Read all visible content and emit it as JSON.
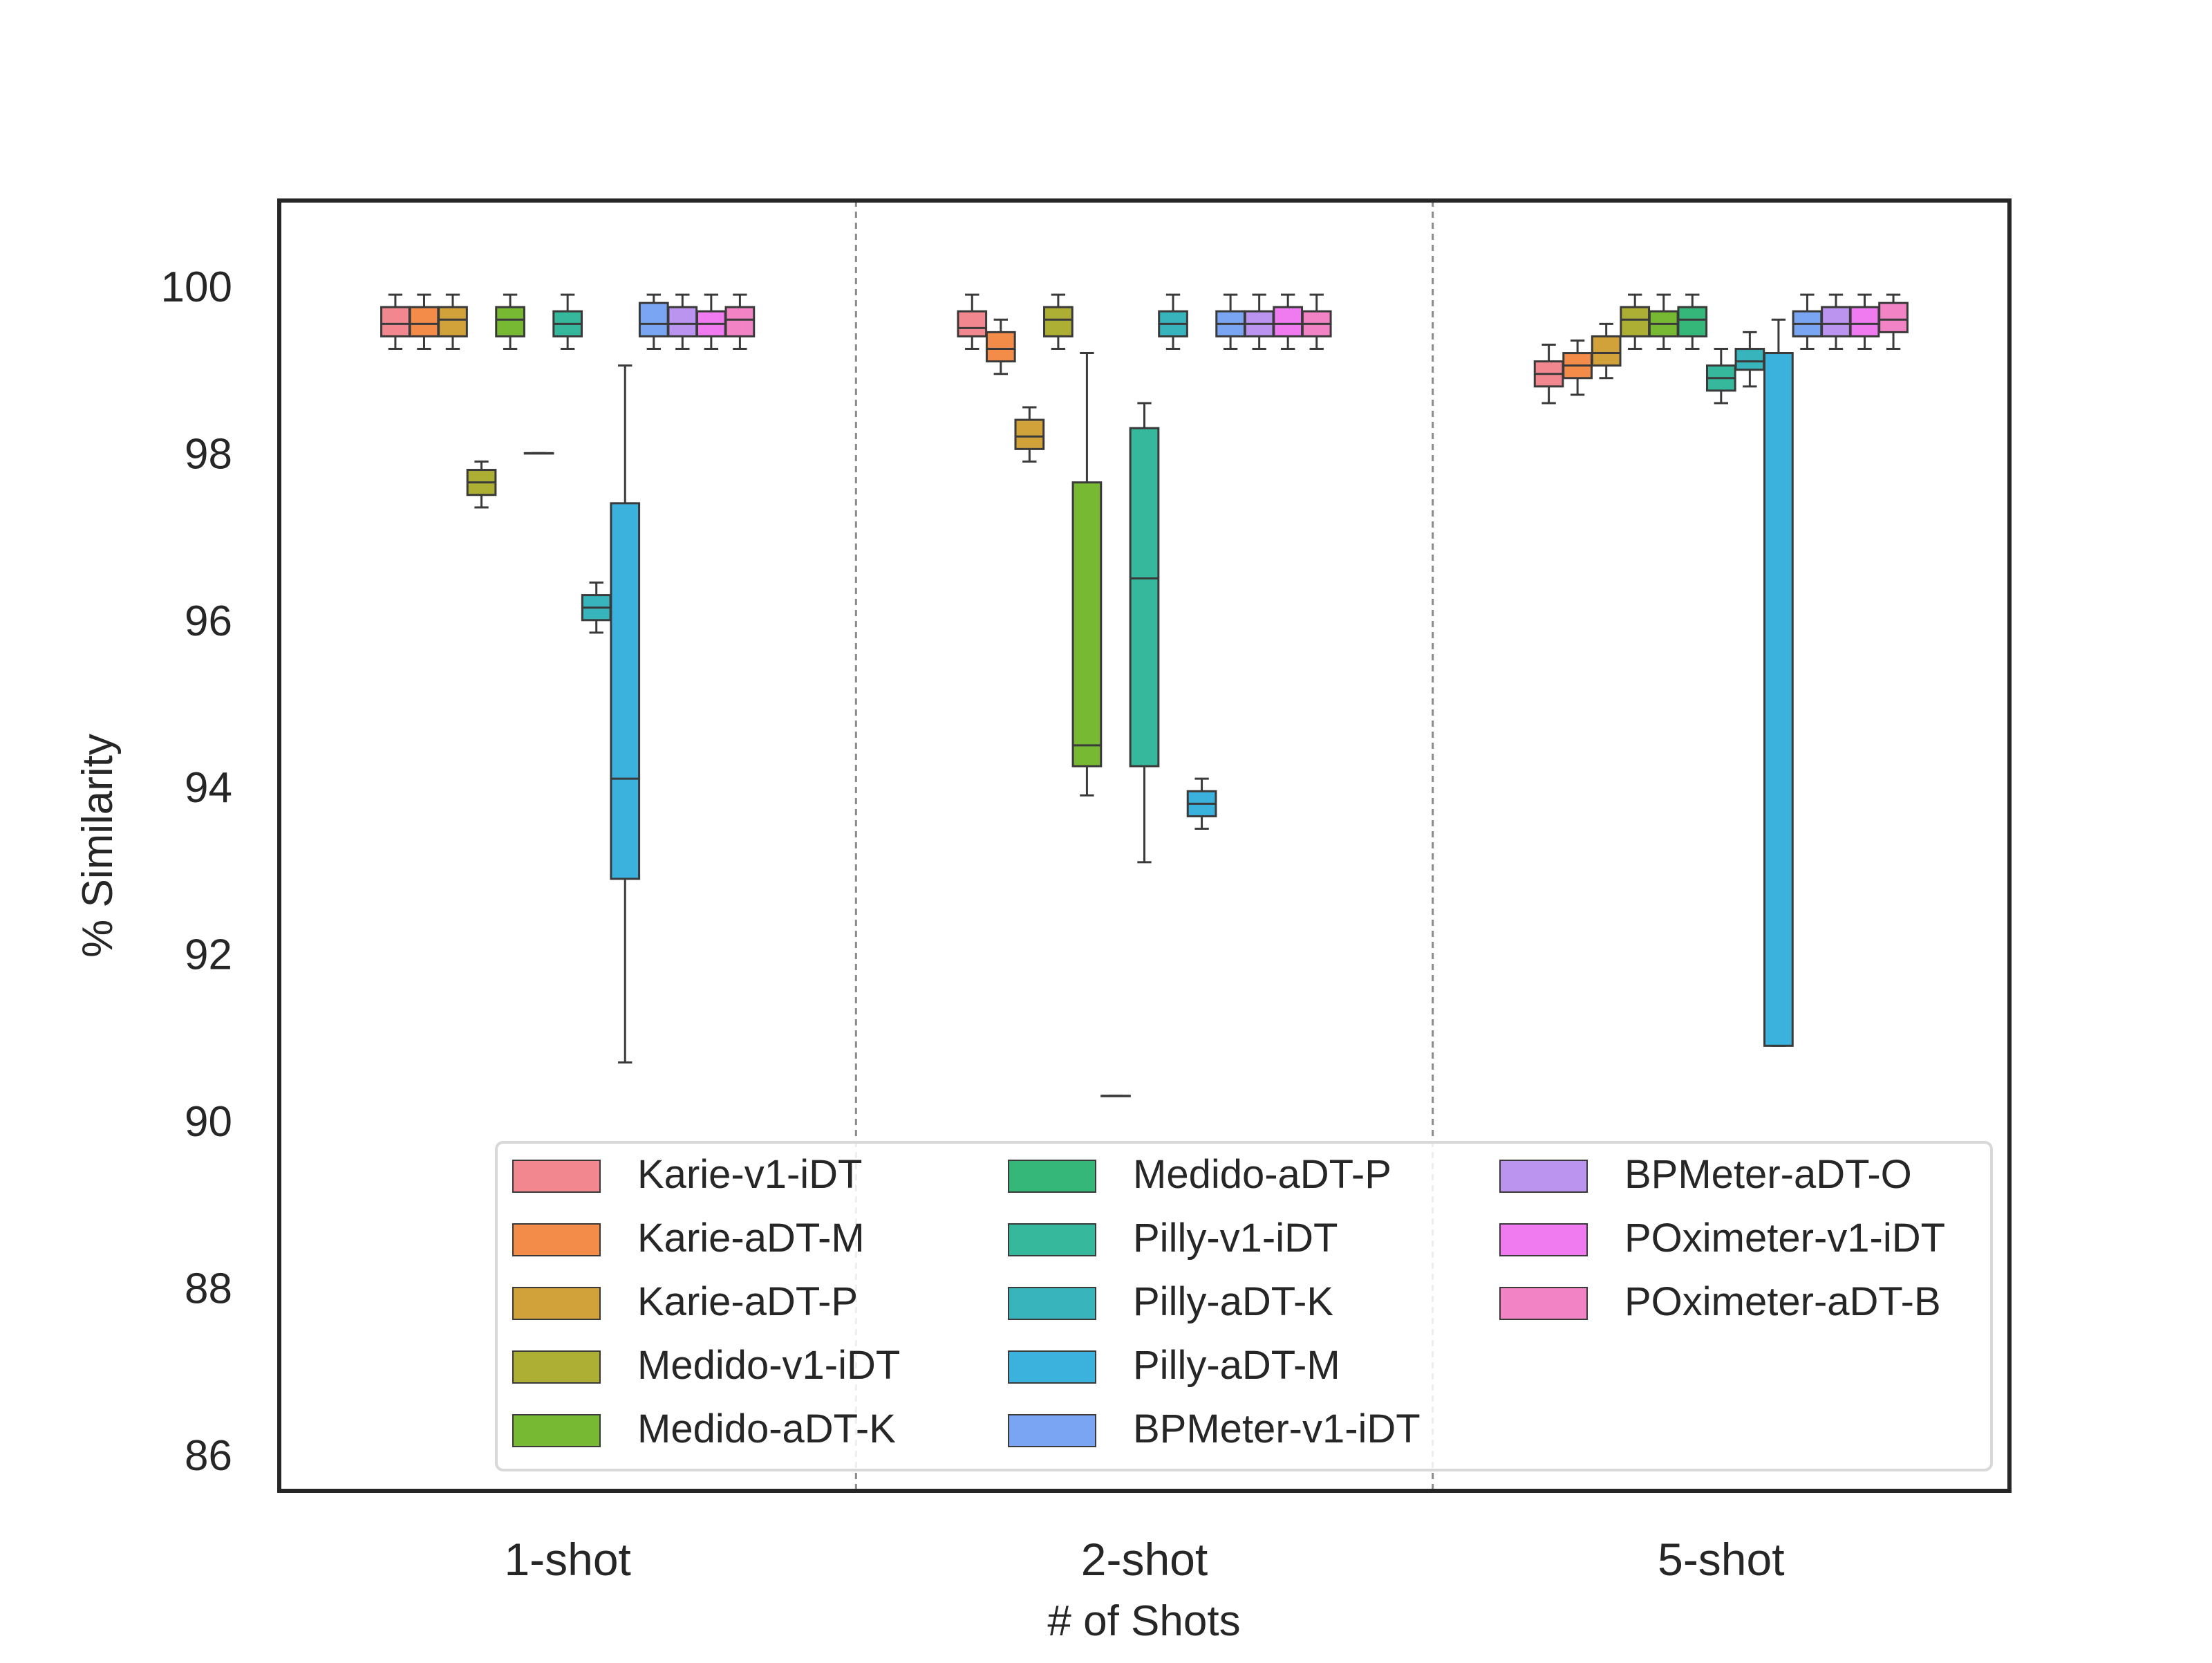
{
  "chart_data": {
    "type": "box",
    "title": "",
    "xlabel": "# of Shots",
    "ylabel": "% Similarity",
    "ylim": [
      85.5,
      101
    ],
    "yticks": [
      86,
      88,
      90,
      92,
      94,
      96,
      98,
      100
    ],
    "categories": [
      "1-shot",
      "2-shot",
      "5-shot"
    ],
    "grid": false,
    "legend_position": "bottom-right",
    "legend_columns": 3,
    "series": [
      {
        "name": "Karie-v1-iDT",
        "color": "#f2878f",
        "boxes": [
          {
            "whislo": 99.25,
            "q1": 99.4,
            "med": 99.55,
            "q3": 99.75,
            "whishi": 99.9
          },
          {
            "whislo": 99.25,
            "q1": 99.4,
            "med": 99.5,
            "q3": 99.7,
            "whishi": 99.9
          },
          {
            "whislo": 98.6,
            "q1": 98.8,
            "med": 98.95,
            "q3": 99.1,
            "whishi": 99.3
          }
        ]
      },
      {
        "name": "Karie-aDT-M",
        "color": "#f38b49",
        "boxes": [
          {
            "whislo": 99.25,
            "q1": 99.4,
            "med": 99.55,
            "q3": 99.75,
            "whishi": 99.9
          },
          {
            "whislo": 98.95,
            "q1": 99.1,
            "med": 99.25,
            "q3": 99.45,
            "whishi": 99.6
          },
          {
            "whislo": 98.7,
            "q1": 98.9,
            "med": 99.05,
            "q3": 99.2,
            "whishi": 99.35
          }
        ]
      },
      {
        "name": "Karie-aDT-P",
        "color": "#d1a13a",
        "boxes": [
          {
            "whislo": 99.25,
            "q1": 99.4,
            "med": 99.6,
            "q3": 99.75,
            "whishi": 99.9
          },
          {
            "whislo": 97.9,
            "q1": 98.05,
            "med": 98.2,
            "q3": 98.4,
            "whishi": 98.55
          },
          {
            "whislo": 98.9,
            "q1": 99.05,
            "med": 99.2,
            "q3": 99.4,
            "whishi": 99.55
          }
        ]
      },
      {
        "name": "Medido-v1-iDT",
        "color": "#adae34",
        "boxes": [
          {
            "whislo": 97.35,
            "q1": 97.5,
            "med": 97.65,
            "q3": 97.8,
            "whishi": 97.9
          },
          {
            "whislo": 99.25,
            "q1": 99.4,
            "med": 99.6,
            "q3": 99.75,
            "whishi": 99.9
          },
          {
            "whislo": 99.25,
            "q1": 99.4,
            "med": 99.6,
            "q3": 99.75,
            "whishi": 99.9
          }
        ]
      },
      {
        "name": "Medido-aDT-K",
        "color": "#77b933",
        "boxes": [
          {
            "whislo": 99.25,
            "q1": 99.4,
            "med": 99.6,
            "q3": 99.75,
            "whishi": 99.9
          },
          {
            "whislo": 93.9,
            "q1": 94.25,
            "med": 94.5,
            "q3": 97.65,
            "whishi": 99.2
          },
          {
            "whislo": 99.25,
            "q1": 99.4,
            "med": 99.55,
            "q3": 99.7,
            "whishi": 99.9
          }
        ]
      },
      {
        "name": "Medido-aDT-P",
        "color": "#35b779",
        "boxes": [
          {
            "whislo": 98.0,
            "q1": 98.0,
            "med": 98.0,
            "q3": 98.0,
            "whishi": 98.0
          },
          {
            "whislo": 90.3,
            "q1": 90.3,
            "med": 90.3,
            "q3": 90.3,
            "whishi": 90.3
          },
          {
            "whislo": 99.25,
            "q1": 99.4,
            "med": 99.6,
            "q3": 99.75,
            "whishi": 99.9
          }
        ]
      },
      {
        "name": "Pilly-v1-iDT",
        "color": "#35b89b",
        "boxes": [
          {
            "whislo": 99.25,
            "q1": 99.4,
            "med": 99.55,
            "q3": 99.7,
            "whishi": 99.9
          },
          {
            "whislo": 93.1,
            "q1": 94.25,
            "med": 96.5,
            "q3": 98.3,
            "whishi": 98.6
          },
          {
            "whislo": 98.6,
            "q1": 98.75,
            "med": 98.9,
            "q3": 99.05,
            "whishi": 99.25
          }
        ]
      },
      {
        "name": "Pilly-aDT-K",
        "color": "#37b4bc",
        "boxes": [
          {
            "whislo": 95.85,
            "q1": 96.0,
            "med": 96.15,
            "q3": 96.3,
            "whishi": 96.45
          },
          {
            "whislo": 99.25,
            "q1": 99.4,
            "med": 99.55,
            "q3": 99.7,
            "whishi": 99.9
          },
          {
            "whislo": 98.8,
            "q1": 99.0,
            "med": 99.1,
            "q3": 99.25,
            "whishi": 99.45
          }
        ]
      },
      {
        "name": "Pilly-aDT-M",
        "color": "#3ab2dd",
        "boxes": [
          {
            "whislo": 90.7,
            "q1": 92.9,
            "med": 94.1,
            "q3": 97.4,
            "whishi": 99.05
          },
          {
            "whislo": 93.5,
            "q1": 93.65,
            "med": 93.8,
            "q3": 93.95,
            "whishi": 94.1
          },
          {
            "whislo": 90.9,
            "q1": 90.9,
            "med": 99.2,
            "q3": 99.2,
            "whishi": 99.6
          }
        ]
      },
      {
        "name": "BPMeter-v1-iDT",
        "color": "#7aa5f2",
        "boxes": [
          {
            "whislo": 99.25,
            "q1": 99.4,
            "med": 99.55,
            "q3": 99.8,
            "whishi": 99.9
          },
          {
            "whislo": 99.25,
            "q1": 99.4,
            "med": 99.55,
            "q3": 99.7,
            "whishi": 99.9
          },
          {
            "whislo": 99.25,
            "q1": 99.4,
            "med": 99.55,
            "q3": 99.7,
            "whishi": 99.9
          }
        ]
      },
      {
        "name": "BPMeter-aDT-O",
        "color": "#bb94f0",
        "boxes": [
          {
            "whislo": 99.25,
            "q1": 99.4,
            "med": 99.55,
            "q3": 99.75,
            "whishi": 99.9
          },
          {
            "whislo": 99.25,
            "q1": 99.4,
            "med": 99.55,
            "q3": 99.7,
            "whishi": 99.9
          },
          {
            "whislo": 99.25,
            "q1": 99.4,
            "med": 99.55,
            "q3": 99.75,
            "whishi": 99.9
          }
        ]
      },
      {
        "name": "POximeter-v1-iDT",
        "color": "#f07af0",
        "boxes": [
          {
            "whislo": 99.25,
            "q1": 99.4,
            "med": 99.55,
            "q3": 99.7,
            "whishi": 99.9
          },
          {
            "whislo": 99.25,
            "q1": 99.4,
            "med": 99.55,
            "q3": 99.75,
            "whishi": 99.9
          },
          {
            "whislo": 99.25,
            "q1": 99.4,
            "med": 99.55,
            "q3": 99.75,
            "whishi": 99.9
          }
        ]
      },
      {
        "name": "POximeter-aDT-B",
        "color": "#f283c5",
        "boxes": [
          {
            "whislo": 99.25,
            "q1": 99.4,
            "med": 99.6,
            "q3": 99.75,
            "whishi": 99.9
          },
          {
            "whislo": 99.25,
            "q1": 99.4,
            "med": 99.55,
            "q3": 99.7,
            "whishi": 99.9
          },
          {
            "whislo": 99.25,
            "q1": 99.45,
            "med": 99.6,
            "q3": 99.8,
            "whishi": 99.9
          }
        ]
      }
    ]
  }
}
